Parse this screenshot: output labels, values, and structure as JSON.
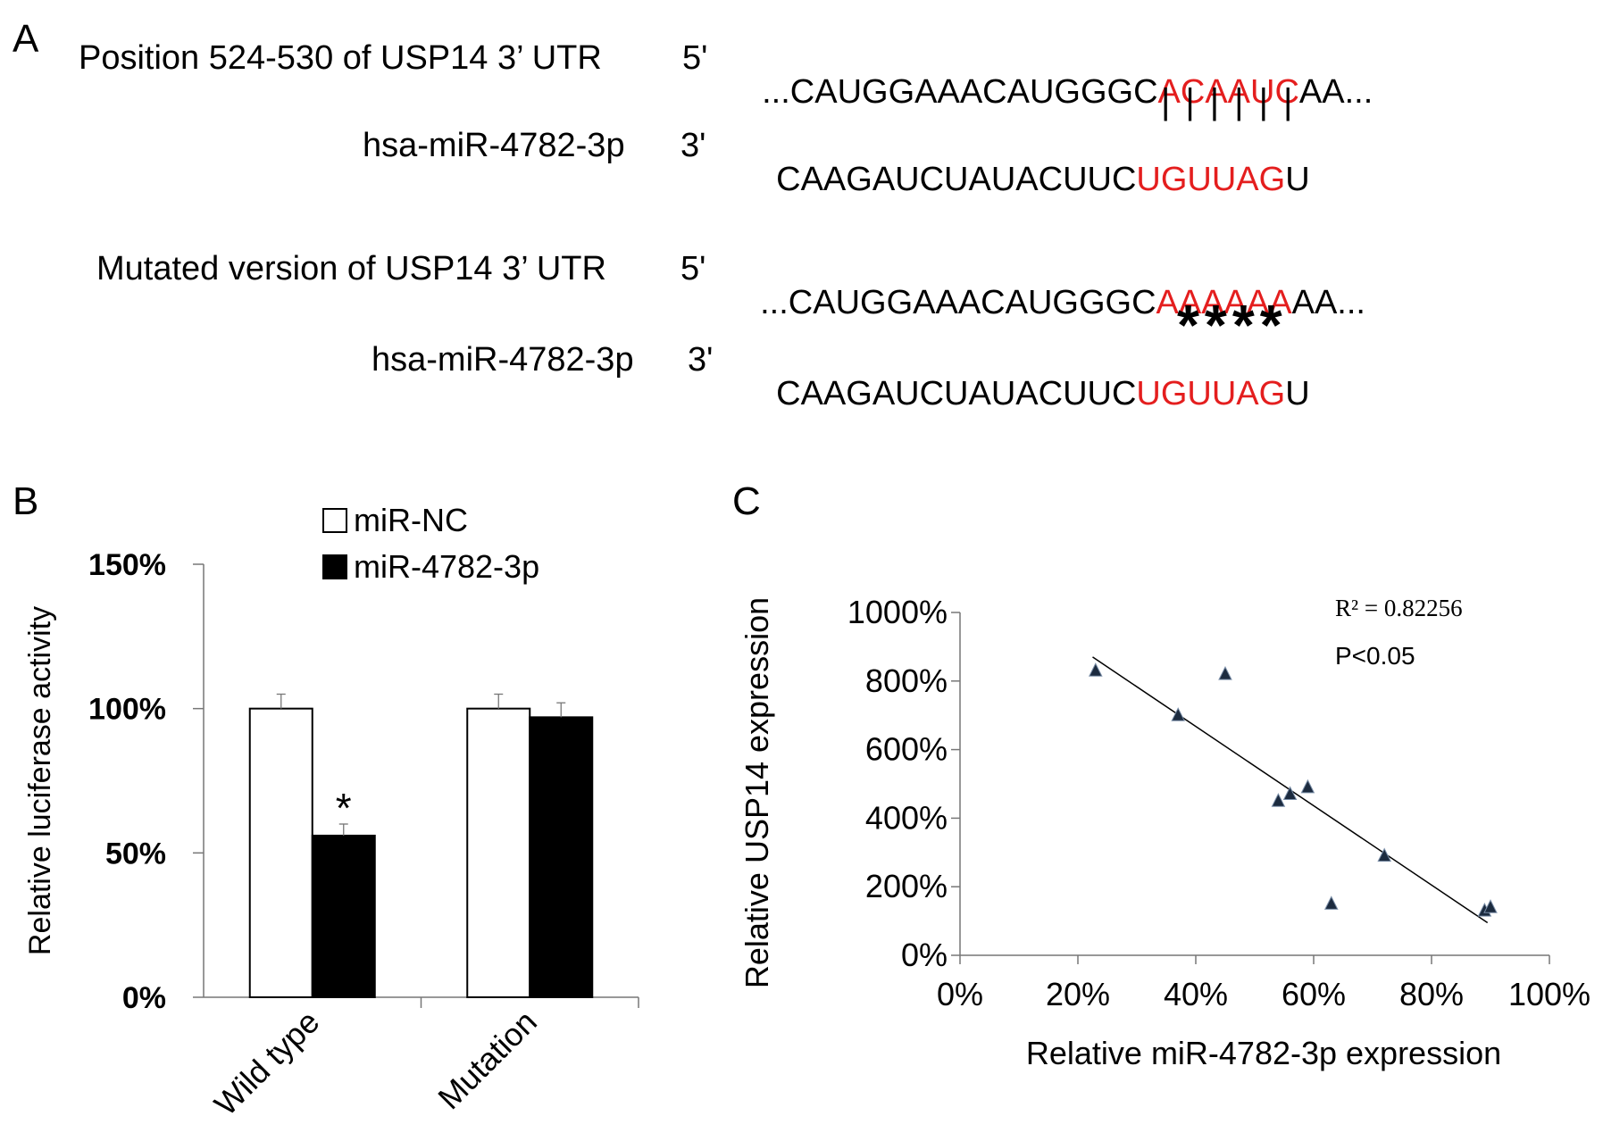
{
  "panel_a": {
    "letter": "A",
    "wt": {
      "label": "Position 524-530 of USP14 3’ UTR",
      "end": "5'",
      "seq_pre": "...CAUGGAAACAUGGGC",
      "seq_site": "ACAAUC",
      "seq_post": "AA..."
    },
    "pairing": "||||||",
    "mir1": {
      "label": "hsa-miR-4782-3p",
      "end": "3'",
      "seq_pre": "CAAGAUCUAUACUUC",
      "seq_site": "UGUUAG",
      "seq_post": "U"
    },
    "mut": {
      "label": "Mutated version of USP14 3’ UTR",
      "end": "5'",
      "seq_pre": "...CAUGGAAACAUGGGC",
      "seq_site": "AAAAAA",
      "seq_post": "AA..."
    },
    "stars": "****",
    "mir2": {
      "label": "hsa-miR-4782-3p",
      "end": "3'",
      "seq_pre": "CAAGAUCUAUACUUC",
      "seq_site": "UGUUAG",
      "seq_post": "U"
    },
    "colors": {
      "site": "#e41e1e"
    }
  },
  "chart_data": [
    {
      "panel": "B",
      "type": "bar",
      "ylabel": "Relative luciferase activity",
      "categories": [
        "Wild type",
        "Mutation"
      ],
      "series": [
        {
          "name": "miR-NC",
          "values": [
            100,
            100
          ],
          "errors": [
            5,
            5
          ],
          "color": "#ffffff"
        },
        {
          "name": "miR-4782-3p",
          "values": [
            56,
            97
          ],
          "errors": [
            4,
            5
          ],
          "color": "#000000"
        }
      ],
      "ylim": [
        0,
        150
      ],
      "yticks": [
        0,
        50,
        100,
        150
      ],
      "ytick_labels": [
        "0%",
        "50%",
        "100%",
        "150%"
      ],
      "significance": [
        {
          "category": "Wild type",
          "series": "miR-4782-3p",
          "mark": "*"
        }
      ],
      "legend": "top"
    },
    {
      "panel": "C",
      "type": "scatter",
      "xlabel": "Relative miR-4782-3p expression",
      "ylabel": "Relative USP14 expression",
      "xlim": [
        0,
        100
      ],
      "ylim": [
        0,
        1000
      ],
      "xticks": [
        0,
        20,
        40,
        60,
        80,
        100
      ],
      "xtick_labels": [
        "0%",
        "20%",
        "40%",
        "60%",
        "80%",
        "100%"
      ],
      "yticks": [
        0,
        200,
        400,
        600,
        800,
        1000
      ],
      "ytick_labels": [
        "0%",
        "200%",
        "400%",
        "600%",
        "800%",
        "1000%"
      ],
      "points": [
        {
          "x": 23,
          "y": 830
        },
        {
          "x": 37,
          "y": 700
        },
        {
          "x": 45,
          "y": 820
        },
        {
          "x": 54,
          "y": 450
        },
        {
          "x": 56,
          "y": 470
        },
        {
          "x": 59,
          "y": 490
        },
        {
          "x": 63,
          "y": 150
        },
        {
          "x": 72,
          "y": 290
        },
        {
          "x": 89,
          "y": 130
        },
        {
          "x": 90,
          "y": 140
        }
      ],
      "trendline": {
        "x": [
          22.5,
          89.5
        ],
        "y": [
          870,
          95
        ]
      },
      "annotations": [
        "R² = 0.82256",
        "P<0.05"
      ],
      "marker_color": "#1c2b3f"
    }
  ]
}
